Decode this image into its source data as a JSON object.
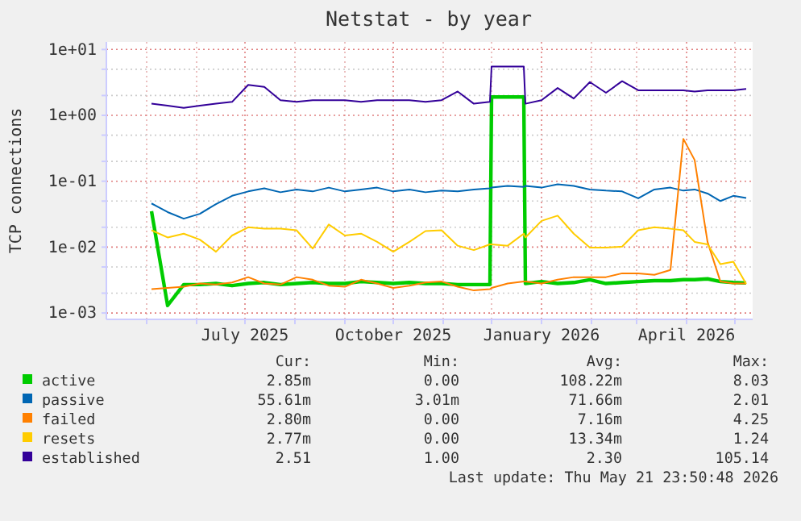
{
  "chart_data": {
    "type": "line",
    "title": "Netstat - by year",
    "ylabel": "TCP connections",
    "log": true,
    "grid": true,
    "legend": "bottom",
    "xlim": [
      "2025-04-06",
      "2026-05-12"
    ],
    "xticks": [
      {
        "value": "2025-05-01",
        "label": null
      },
      {
        "value": "2025-06-01",
        "label": null
      },
      {
        "value": "2025-07-01",
        "label": "July 2025"
      },
      {
        "value": "2025-08-01",
        "label": null
      },
      {
        "value": "2025-09-01",
        "label": null
      },
      {
        "value": "2025-10-01",
        "label": "October 2025"
      },
      {
        "value": "2025-11-01",
        "label": null
      },
      {
        "value": "2025-12-01",
        "label": null
      },
      {
        "value": "2026-01-01",
        "label": "January 2026"
      },
      {
        "value": "2026-02-01",
        "label": null
      },
      {
        "value": "2026-03-01",
        "label": null
      },
      {
        "value": "2026-04-01",
        "label": "April 2026"
      },
      {
        "value": "2026-05-01",
        "label": null
      }
    ],
    "ylim": [
      0.0008,
      13
    ],
    "yticks": [
      {
        "value": 0.001,
        "label": "1e-03"
      },
      {
        "value": 0.002,
        "label": null
      },
      {
        "value": 0.005,
        "label": null
      },
      {
        "value": 0.01,
        "label": "1e-02"
      },
      {
        "value": 0.02,
        "label": null
      },
      {
        "value": 0.05,
        "label": null
      },
      {
        "value": 0.1,
        "label": "1e-01"
      },
      {
        "value": 0.2,
        "label": null
      },
      {
        "value": 0.5,
        "label": null
      },
      {
        "value": 1,
        "label": "1e+00"
      },
      {
        "value": 2,
        "label": null
      },
      {
        "value": 5,
        "label": null
      },
      {
        "value": 10,
        "label": "1e+01"
      }
    ],
    "x": [
      "2025-05-04",
      "2025-05-14",
      "2025-05-24",
      "2025-06-03",
      "2025-06-13",
      "2025-06-23",
      "2025-07-03",
      "2025-07-13",
      "2025-07-23",
      "2025-08-02",
      "2025-08-12",
      "2025-08-22",
      "2025-09-01",
      "2025-09-11",
      "2025-09-21",
      "2025-10-01",
      "2025-10-11",
      "2025-10-21",
      "2025-10-31",
      "2025-11-10",
      "2025-11-20",
      "2025-11-30",
      "2025-12-01",
      "2025-12-11",
      "2025-12-21",
      "2025-12-22",
      "2026-01-01",
      "2026-01-11",
      "2026-01-21",
      "2026-01-31",
      "2026-02-10",
      "2026-02-20",
      "2026-03-02",
      "2026-03-12",
      "2026-03-22",
      "2026-03-30",
      "2026-04-06",
      "2026-04-14",
      "2026-04-22",
      "2026-04-30",
      "2026-05-08"
    ],
    "series": [
      {
        "name": "active",
        "color": "#00cc00",
        "values": [
          0.035,
          0.0013,
          0.0027,
          0.0027,
          0.0028,
          0.0026,
          0.0028,
          0.0029,
          0.0027,
          0.0028,
          0.0029,
          0.0028,
          0.0028,
          0.003,
          0.0029,
          0.0028,
          0.0029,
          0.0028,
          0.0028,
          0.0027,
          0.0027,
          0.0027,
          1.9,
          1.9,
          1.9,
          0.0028,
          0.003,
          0.0028,
          0.0029,
          0.0032,
          0.0028,
          0.0029,
          0.003,
          0.0031,
          0.0031,
          0.0032,
          0.0032,
          0.0033,
          0.003,
          0.0029,
          0.00285
        ]
      },
      {
        "name": "passive",
        "color": "#0066b3",
        "values": [
          0.046,
          0.034,
          0.027,
          0.032,
          0.045,
          0.06,
          0.07,
          0.078,
          0.068,
          0.075,
          0.07,
          0.08,
          0.07,
          0.075,
          0.08,
          0.07,
          0.075,
          0.068,
          0.072,
          0.07,
          0.075,
          0.078,
          0.08,
          0.085,
          0.082,
          0.085,
          0.08,
          0.09,
          0.085,
          0.075,
          0.072,
          0.07,
          0.055,
          0.075,
          0.08,
          0.072,
          0.075,
          0.065,
          0.05,
          0.06,
          0.0556
        ]
      },
      {
        "name": "failed",
        "color": "#ff8000",
        "values": [
          0.0023,
          0.0024,
          0.0025,
          0.0028,
          0.0027,
          0.0029,
          0.0035,
          0.0028,
          0.0027,
          0.0035,
          0.0032,
          0.0026,
          0.0025,
          0.0032,
          0.0028,
          0.0024,
          0.0026,
          0.0029,
          0.003,
          0.0025,
          0.0022,
          0.0023,
          0.0024,
          0.0028,
          0.003,
          0.003,
          0.0028,
          0.0032,
          0.0035,
          0.0035,
          0.0035,
          0.004,
          0.004,
          0.0038,
          0.0045,
          0.44,
          0.21,
          0.012,
          0.003,
          0.0028,
          0.0028
        ]
      },
      {
        "name": "resets",
        "color": "#ffcc00",
        "values": [
          0.018,
          0.014,
          0.016,
          0.013,
          0.0085,
          0.015,
          0.02,
          0.019,
          0.019,
          0.018,
          0.0095,
          0.022,
          0.015,
          0.016,
          0.012,
          0.0085,
          0.012,
          0.0175,
          0.018,
          0.0105,
          0.009,
          0.011,
          0.011,
          0.0105,
          0.016,
          0.014,
          0.025,
          0.03,
          0.016,
          0.0098,
          0.0098,
          0.0102,
          0.018,
          0.02,
          0.019,
          0.018,
          0.012,
          0.011,
          0.0055,
          0.006,
          0.00277
        ]
      },
      {
        "name": "established",
        "color": "#330099",
        "values": [
          1.5,
          1.4,
          1.3,
          1.4,
          1.5,
          1.6,
          2.9,
          2.7,
          1.7,
          1.6,
          1.7,
          1.7,
          1.7,
          1.6,
          1.7,
          1.7,
          1.7,
          1.6,
          1.7,
          2.3,
          1.5,
          1.6,
          5.5,
          5.5,
          5.5,
          1.5,
          1.7,
          2.6,
          1.8,
          3.2,
          2.2,
          3.3,
          2.4,
          2.4,
          2.4,
          2.4,
          2.3,
          2.4,
          2.4,
          2.4,
          2.51
        ]
      }
    ],
    "annotations": [
      "Cur:",
      "Min:",
      "Avg:",
      "Max:",
      "2.85m",
      "0.00",
      "108.22m",
      "8.03",
      "55.61m",
      "3.01m",
      "71.66m",
      "2.01",
      "2.80m",
      "0.00",
      "7.16m",
      "4.25",
      "2.77m",
      "0.00",
      "13.34m",
      "1.24",
      "2.51",
      "1.00",
      "2.30",
      "105.14",
      "Last update: Thu May 21 23:50:48 2026"
    ]
  }
}
